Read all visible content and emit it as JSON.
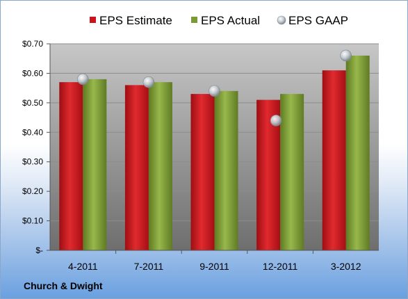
{
  "company": "Church & Dwight",
  "colors": {
    "estimate": "#c8141a",
    "actual": "#7a9a34",
    "gaap": "#a9b1b8",
    "plot_top": "#c7c7c7",
    "plot_bottom": "#6e6e6e"
  },
  "chart_data": {
    "type": "bar",
    "categories": [
      "4-2011",
      "7-2011",
      "9-2011",
      "12-2011",
      "3-2012"
    ],
    "series": [
      {
        "name": "EPS Estimate",
        "values": [
          0.57,
          0.56,
          0.53,
          0.51,
          0.61
        ]
      },
      {
        "name": "EPS Actual",
        "values": [
          0.58,
          0.57,
          0.54,
          0.53,
          0.66
        ]
      },
      {
        "name": "EPS GAAP",
        "type": "scatter",
        "values": [
          0.58,
          0.57,
          0.54,
          0.44,
          0.66
        ]
      }
    ],
    "yticks": [
      0,
      0.1,
      0.2,
      0.3,
      0.4,
      0.5,
      0.6,
      0.7
    ],
    "ytick_labels": [
      "$-",
      "$0.10",
      "$0.20",
      "$0.30",
      "$0.40",
      "$0.50",
      "$0.60",
      "$0.70"
    ],
    "ylim": [
      0,
      0.7
    ],
    "grid": true,
    "legend_position": "top"
  }
}
